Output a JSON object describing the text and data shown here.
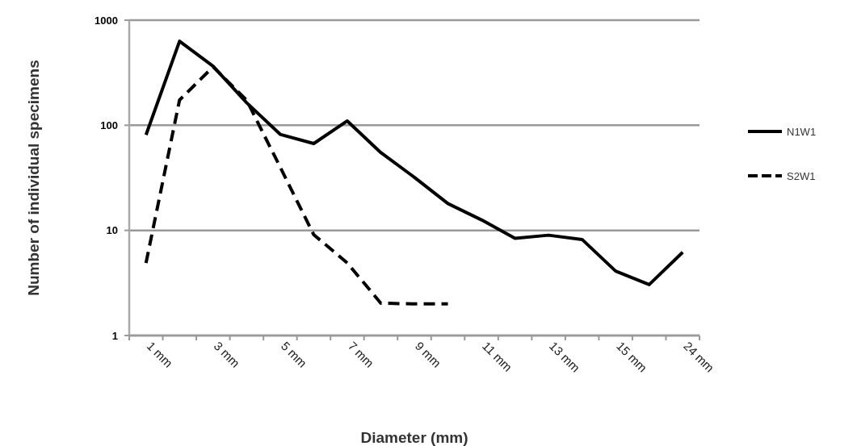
{
  "chart_data": {
    "type": "line",
    "xlabel": "Diameter (mm)",
    "ylabel": "Number of individual specimens",
    "categories": [
      "1 mm",
      null,
      "3 mm",
      null,
      "5 mm",
      null,
      "7 mm",
      null,
      "9 mm",
      null,
      "11 mm",
      null,
      "13 mm",
      null,
      "15 mm",
      null,
      "24 mm"
    ],
    "series": [
      {
        "name": "N1W1",
        "color": "#000000",
        "line_style": "solid",
        "values": [
          81,
          630,
          365,
          164,
          82,
          67,
          110,
          55,
          32,
          18,
          12.6,
          8.4,
          9,
          8.2,
          4.1,
          3.05,
          6.2
        ]
      },
      {
        "name": "S2W1",
        "color": "#000000",
        "line_style": "dashed",
        "values": [
          4.9,
          174,
          360,
          173,
          40,
          9.1,
          4.9,
          2.03,
          2,
          2,
          null,
          null,
          null,
          null,
          null,
          null,
          null
        ]
      }
    ],
    "log": "y",
    "ylim": [
      1,
      1000
    ],
    "yticks": [
      1,
      10,
      100,
      1000
    ],
    "grid": "y",
    "legend": "right",
    "marker": "none"
  }
}
